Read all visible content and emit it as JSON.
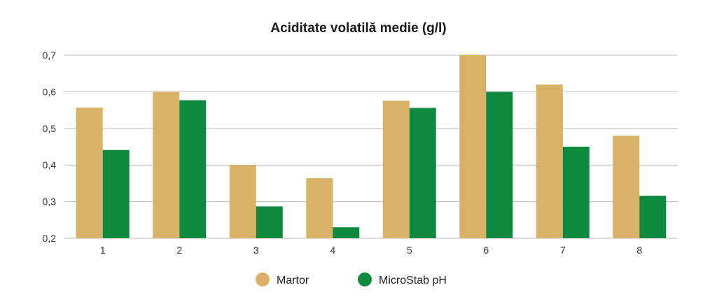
{
  "chart_data": {
    "type": "bar",
    "title": "Aciditate volatilă medie (g/l)",
    "xlabel": "",
    "ylabel": "",
    "categories": [
      "1",
      "2",
      "3",
      "4",
      "5",
      "6",
      "7",
      "8"
    ],
    "ylim": [
      0.2,
      0.7
    ],
    "yticks": [
      "0,2",
      "0,3",
      "0,4",
      "0,5",
      "0,6",
      "0,7"
    ],
    "ytick_values": [
      0.2,
      0.3,
      0.4,
      0.5,
      0.6,
      0.7
    ],
    "grid": true,
    "legend_position": "bottom-center",
    "series": [
      {
        "name": "Martor",
        "color": "#D9B268",
        "values": [
          0.557,
          0.6,
          0.4,
          0.364,
          0.576,
          0.7,
          0.62,
          0.48
        ]
      },
      {
        "name": "MicroStab pH",
        "color": "#0E8A3E",
        "values": [
          0.441,
          0.577,
          0.287,
          0.23,
          0.556,
          0.6,
          0.45,
          0.316
        ]
      }
    ]
  }
}
